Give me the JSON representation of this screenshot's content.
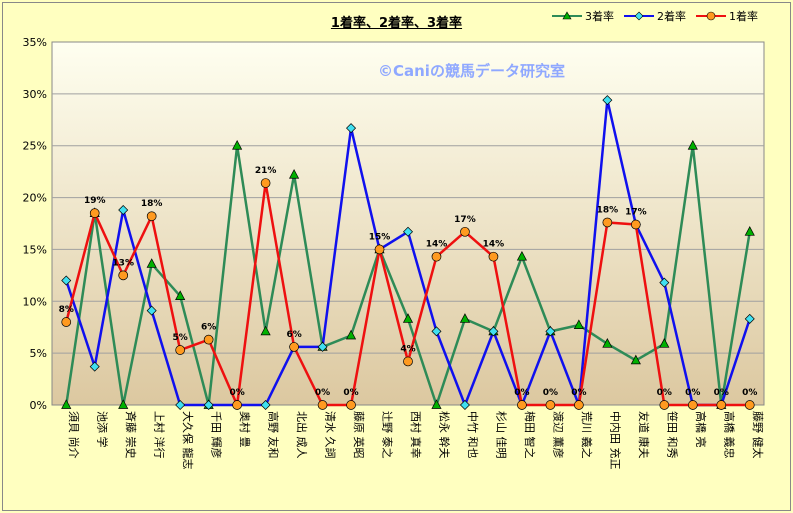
{
  "chart_data": {
    "type": "line",
    "title": "1着率、2着率、3着率",
    "watermark": "©Caniの競馬データ研究室",
    "ylim": [
      0,
      35
    ],
    "yticks": [
      "0%",
      "5%",
      "10%",
      "15%",
      "20%",
      "25%",
      "30%",
      "35%"
    ],
    "categories": [
      "須貝 尚介",
      "池添 学",
      "斉藤 崇史",
      "上村 洋行",
      "大久保 龍志",
      "千田 輝彦",
      "奥村 豊",
      "高野 友和",
      "北出 成人",
      "清水 久詞",
      "藤原 英昭",
      "辻野 泰之",
      "西村 真幸",
      "松永 幹夫",
      "中竹 和也",
      "杉山 佳明",
      "梅田 智之",
      "渡辺 薫彦",
      "荒川 義之",
      "中内田 充正",
      "友道 康夫",
      "笹田 和秀",
      "高橋 亮",
      "高橋 義忠",
      "藤野 健太"
    ],
    "series": [
      {
        "name": "3着率",
        "color": "#2e8b57",
        "marker": "triangle",
        "marker_color": "#00b000",
        "values": [
          0,
          18.5,
          0,
          13.6,
          10.5,
          0,
          25,
          7.1,
          22.2,
          5.6,
          6.7,
          15,
          8.3,
          0,
          8.3,
          7.1,
          14.3,
          7.1,
          7.7,
          5.9,
          4.3,
          5.9,
          25,
          0,
          16.7
        ]
      },
      {
        "name": "2着率",
        "color": "#1010ee",
        "marker": "diamond",
        "marker_color": "#40e0f0",
        "values": [
          12,
          3.7,
          18.8,
          9.1,
          0,
          0,
          0,
          0,
          5.6,
          5.6,
          26.7,
          15,
          16.7,
          7.1,
          0,
          7.1,
          0,
          7.1,
          0,
          29.4,
          17.4,
          11.8,
          0,
          0,
          8.3
        ]
      },
      {
        "name": "1着率",
        "color": "#ee1010",
        "marker": "circle",
        "marker_color": "#ff9a20",
        "values": [
          8,
          18.5,
          12.5,
          18.2,
          5.3,
          6.3,
          0,
          21.4,
          5.6,
          0,
          0,
          15,
          4.2,
          14.3,
          16.7,
          14.3,
          0,
          0,
          0,
          17.6,
          17.4,
          0,
          0,
          0,
          0
        ],
        "labels": [
          "8%",
          "19%",
          "13%",
          "18%",
          "5%",
          "6%",
          "0%",
          "21%",
          "6%",
          "0%",
          "0%",
          "15%",
          "4%",
          "14%",
          "17%",
          "14%",
          "0%",
          "0%",
          "0%",
          "18%",
          "17%",
          "0%",
          "0%",
          "0%",
          "0%"
        ]
      }
    ],
    "legend_position": "top-right",
    "grid": true
  }
}
